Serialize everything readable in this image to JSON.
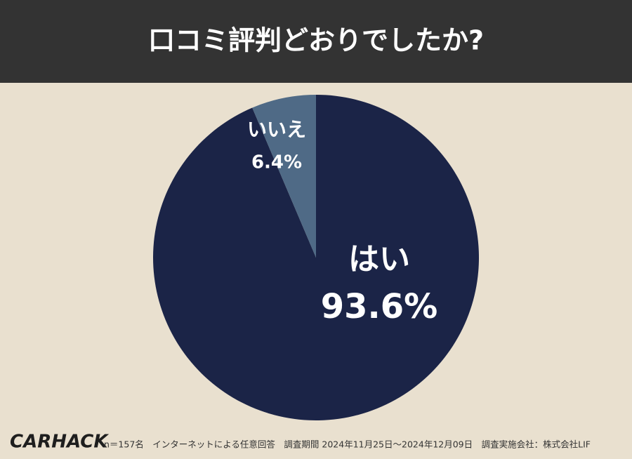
{
  "chart_data": {
    "type": "pie",
    "title": "口コミ評判どおりでしたか?",
    "categories": [
      "はい",
      "いいえ"
    ],
    "values": [
      93.6,
      6.4
    ],
    "value_labels": [
      "93.6%",
      "6.4%"
    ],
    "colors": [
      "#1b2447",
      "#4f6a86"
    ],
    "note": "n＝157名　インターネットによる任意回答　調査期間 2024年11月25日〜2024年12月09日　調査実施会社：株式会社LIF"
  },
  "logo": "CARHACK"
}
